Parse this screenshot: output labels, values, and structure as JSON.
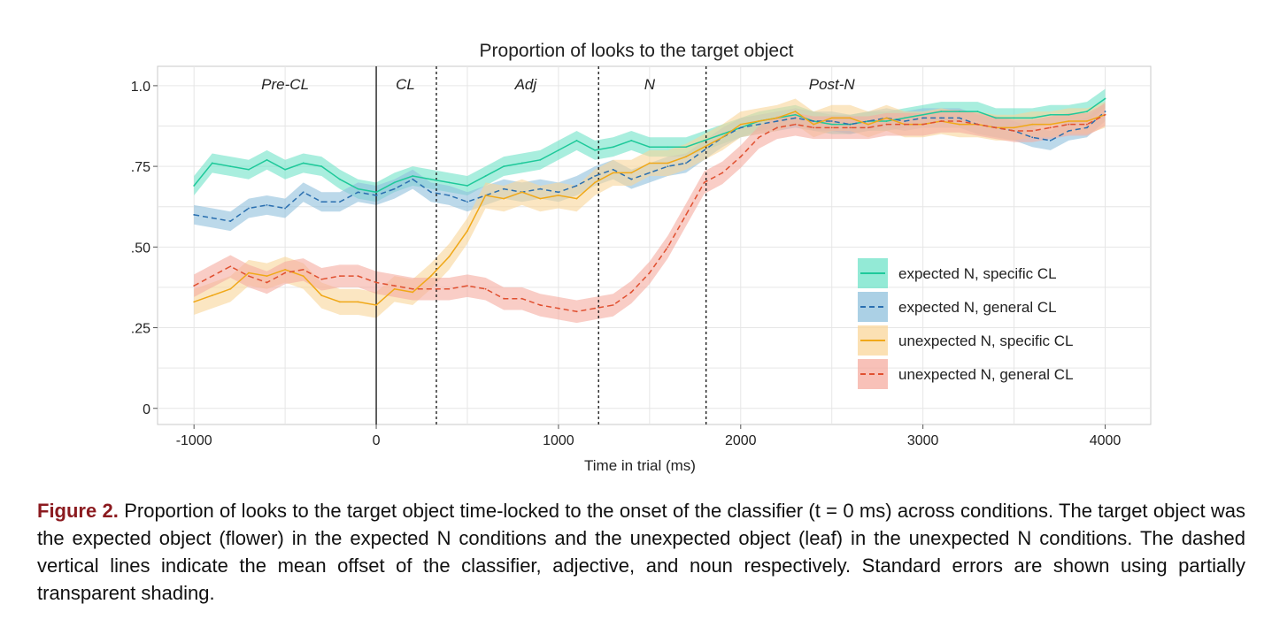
{
  "chart_data": {
    "type": "line",
    "title": "Proportion of looks to the target object",
    "xlabel": "Time in trial (ms)",
    "ylabel": "",
    "xlim": [
      -1200,
      4250
    ],
    "ylim": [
      -0.05,
      1.06
    ],
    "x_ticks": [
      -1000,
      0,
      1000,
      2000,
      3000,
      4000
    ],
    "x_tick_labels": [
      "-1000",
      "0",
      "1000",
      "2000",
      "3000",
      "4000"
    ],
    "y_ticks": [
      0,
      0.25,
      0.5,
      0.75,
      1.0
    ],
    "y_tick_labels": [
      "0",
      ".25",
      ".50",
      ".75",
      "1.0"
    ],
    "grid": true,
    "legend_position": "bottom-right",
    "onset_line": 0,
    "offset_lines": [
      330,
      1220,
      1810
    ],
    "regions": [
      {
        "label": "Pre-CL",
        "x": -500
      },
      {
        "label": "CL",
        "x": 160
      },
      {
        "label": "Adj",
        "x": 820
      },
      {
        "label": "N",
        "x": 1500
      },
      {
        "label": "Post-N",
        "x": 2500
      }
    ],
    "x": [
      -1000,
      -900,
      -800,
      -700,
      -600,
      -500,
      -400,
      -300,
      -200,
      -100,
      0,
      100,
      200,
      300,
      400,
      500,
      600,
      700,
      800,
      900,
      1000,
      1100,
      1200,
      1300,
      1400,
      1500,
      1600,
      1700,
      1800,
      1900,
      2000,
      2100,
      2200,
      2300,
      2400,
      2500,
      2600,
      2700,
      2800,
      2900,
      3000,
      3100,
      3200,
      3300,
      3400,
      3500,
      3600,
      3700,
      3800,
      3900,
      4000
    ],
    "series": [
      {
        "name": "expected N, specific CL",
        "color": "#1ec99a",
        "fill": "#6fe3c8",
        "dash": "solid",
        "values": [
          0.69,
          0.76,
          0.75,
          0.74,
          0.77,
          0.74,
          0.76,
          0.75,
          0.71,
          0.68,
          0.67,
          0.7,
          0.72,
          0.71,
          0.7,
          0.69,
          0.72,
          0.75,
          0.76,
          0.77,
          0.8,
          0.83,
          0.8,
          0.81,
          0.83,
          0.81,
          0.81,
          0.81,
          0.83,
          0.85,
          0.87,
          0.89,
          0.9,
          0.91,
          0.89,
          0.88,
          0.88,
          0.89,
          0.89,
          0.9,
          0.91,
          0.92,
          0.92,
          0.92,
          0.9,
          0.9,
          0.9,
          0.91,
          0.91,
          0.92,
          0.96
        ],
        "se": 0.03
      },
      {
        "name": "expected N, general CL",
        "color": "#2a6fb0",
        "fill": "#8fc0dc",
        "dash": "dashed",
        "values": [
          0.6,
          0.59,
          0.58,
          0.62,
          0.63,
          0.62,
          0.67,
          0.64,
          0.64,
          0.67,
          0.66,
          0.68,
          0.71,
          0.67,
          0.66,
          0.64,
          0.66,
          0.68,
          0.67,
          0.68,
          0.67,
          0.69,
          0.72,
          0.74,
          0.71,
          0.73,
          0.75,
          0.76,
          0.8,
          0.84,
          0.87,
          0.88,
          0.89,
          0.9,
          0.89,
          0.89,
          0.88,
          0.89,
          0.9,
          0.89,
          0.9,
          0.9,
          0.9,
          0.88,
          0.87,
          0.86,
          0.84,
          0.83,
          0.86,
          0.87,
          0.92
        ],
        "se": 0.03
      },
      {
        "name": "unexpected N, specific CL",
        "color": "#f0a818",
        "fill": "#f9d59a",
        "dash": "solid",
        "values": [
          0.33,
          0.35,
          0.37,
          0.42,
          0.41,
          0.43,
          0.41,
          0.35,
          0.33,
          0.33,
          0.32,
          0.37,
          0.36,
          0.41,
          0.47,
          0.55,
          0.66,
          0.65,
          0.67,
          0.65,
          0.66,
          0.65,
          0.7,
          0.73,
          0.73,
          0.76,
          0.76,
          0.78,
          0.81,
          0.84,
          0.88,
          0.89,
          0.9,
          0.92,
          0.88,
          0.9,
          0.9,
          0.88,
          0.9,
          0.88,
          0.88,
          0.89,
          0.88,
          0.88,
          0.87,
          0.87,
          0.88,
          0.88,
          0.89,
          0.89,
          0.91
        ],
        "se": 0.04
      },
      {
        "name": "unexpected N, general CL",
        "color": "#e05030",
        "fill": "#f5aca0",
        "dash": "dashed",
        "values": [
          0.38,
          0.41,
          0.44,
          0.41,
          0.39,
          0.42,
          0.43,
          0.4,
          0.41,
          0.41,
          0.39,
          0.38,
          0.37,
          0.37,
          0.37,
          0.38,
          0.37,
          0.34,
          0.34,
          0.32,
          0.31,
          0.3,
          0.31,
          0.32,
          0.36,
          0.42,
          0.5,
          0.6,
          0.7,
          0.73,
          0.78,
          0.84,
          0.87,
          0.88,
          0.87,
          0.87,
          0.87,
          0.87,
          0.88,
          0.88,
          0.88,
          0.89,
          0.89,
          0.88,
          0.87,
          0.86,
          0.86,
          0.87,
          0.88,
          0.88,
          0.91
        ],
        "se": 0.035
      }
    ]
  },
  "caption": {
    "label": "Figure 2.",
    "text": " Proportion of looks to the target object time-locked to the onset of the classifier (t = 0 ms) across conditions. The target object was the expected object (flower) in the expected N conditions and the unexpected object (leaf) in the unexpected N conditions. The dashed vertical lines indicate the mean offset of the classifier, adjective, and noun respectively. Standard errors are shown using partially transparent shading."
  }
}
